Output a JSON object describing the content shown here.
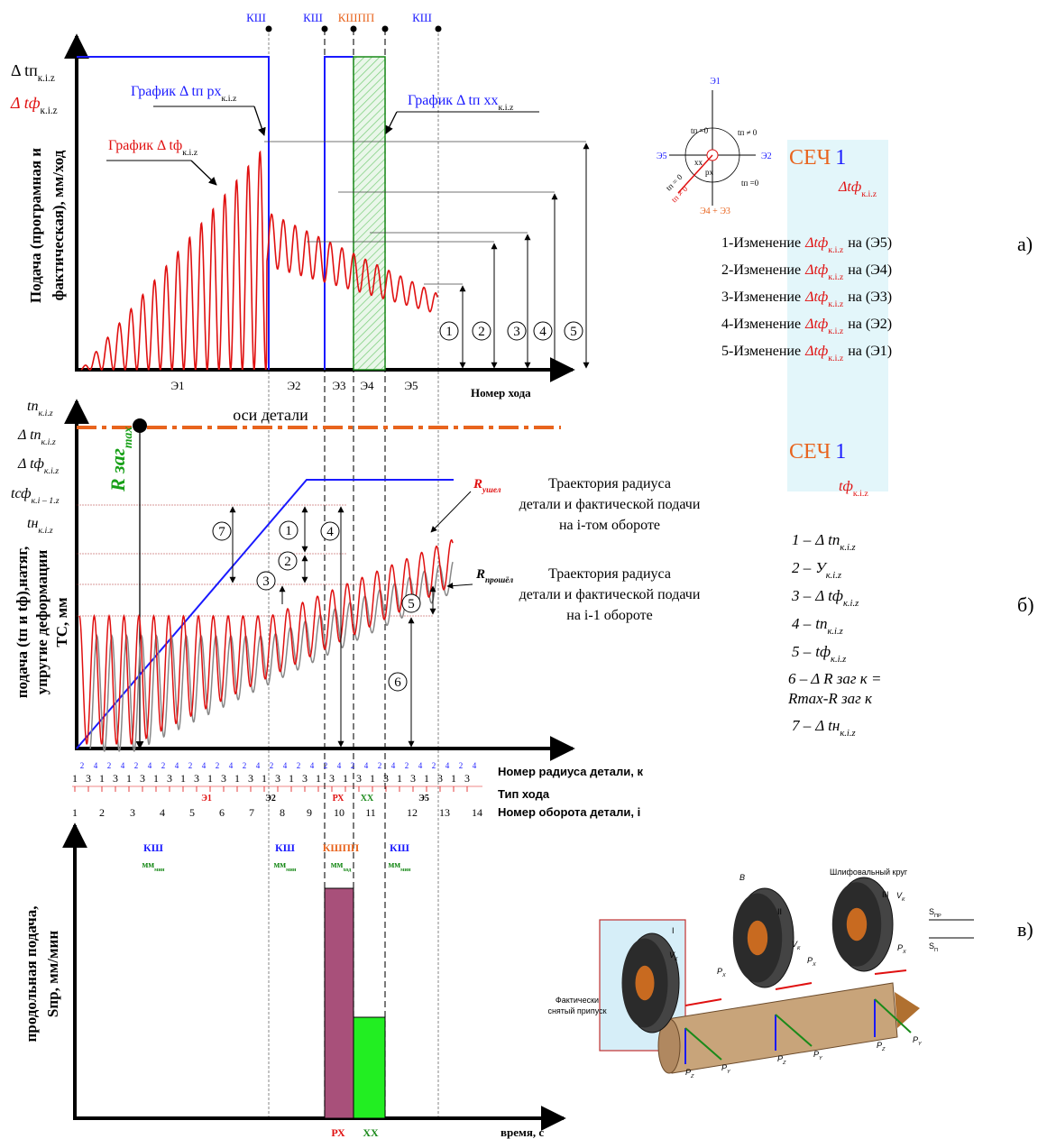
{
  "marks_top": [
    "КШ",
    "КШ",
    "КШПП",
    "КШ"
  ],
  "panel_a": {
    "y_labels": [
      {
        "m": "Δ tп",
        "s": "к.i.z"
      },
      {
        "m": "Δ tф",
        "s": "к.i.z"
      }
    ],
    "y_title": [
      "Подача (програмная и",
      "фактическая), мм/ход"
    ],
    "graph_labels": [
      {
        "m": "График Δ tп рх",
        "s": "к.i.z"
      },
      {
        "m": "График Δ tф",
        "s": "к.i.z"
      },
      {
        "m": "График Δ tп хх",
        "s": "к.i.z"
      }
    ],
    "zones": [
      "Э1",
      "Э2",
      "Э3",
      "Э4",
      "Э5"
    ],
    "x_title": "Номер хода",
    "circles": [
      "1",
      "2",
      "3",
      "4",
      "5"
    ],
    "compass": {
      "e1": "Э1",
      "e2": "Э2",
      "e5": "Э5",
      "e43": "Э4 + Э3",
      "tp0a": "tп =0",
      "tpn0a": "tп ≠ 0",
      "xx": "xx",
      "px": "px",
      "tp0b": "tп =0",
      "tp0c": "tп = 0",
      "tpn0b": "tп ≠ 0"
    },
    "sech": {
      "a": "СЕЧ",
      "n": "1"
    },
    "sech_sub": {
      "m": "Δtф",
      "s": "к.i.z"
    },
    "changes": [
      {
        "a": "1-Изменение",
        "m": "Δtф",
        "s": "к.i.z",
        "b": "на (Э5)"
      },
      {
        "a": "2-Изменение",
        "m": "Δtф",
        "s": "к.i.z",
        "b": "на (Э4)"
      },
      {
        "a": "3-Изменение",
        "m": "Δtф",
        "s": "к.i.z",
        "b": "на (Э3)"
      },
      {
        "a": "4-Изменение",
        "m": "Δtф",
        "s": "к.i.z",
        "b": "на (Э2)"
      },
      {
        "a": "5-Изменение",
        "m": "Δtф",
        "s": "к.i.z",
        "b": "на (Э1)"
      }
    ],
    "letter": "а)"
  },
  "panel_b": {
    "y_labels": [
      {
        "m": "tп",
        "s": "к.i.z"
      },
      {
        "m": "Δ tп",
        "s": "к.i.z"
      },
      {
        "m": "Δ tф",
        "s": "к.i.z"
      },
      {
        "m": "tсф",
        "s": "к.i – 1.z"
      },
      {
        "m": "tн",
        "s": "к.i.z"
      }
    ],
    "y_title": [
      "подача (tп и tф),натяг,",
      "упругие деформации",
      "ТС, мм"
    ],
    "rmax": {
      "m": "R заг",
      "s": "max"
    },
    "axis_line": "оси детали",
    "r_ushel": {
      "m": "R",
      "s": "ушел"
    },
    "traj1": [
      "Траектория радиуса",
      "детали и фактической подачи",
      "на i-том обороте"
    ],
    "r_proshel": {
      "m": "R",
      "s": "прошёл"
    },
    "traj2": [
      "Траектория радиуса",
      "детали и фактической подачи",
      "на i-1 обороте"
    ],
    "circles": [
      "7",
      "1",
      "4",
      "2",
      "3",
      "5",
      "6"
    ],
    "legend": [
      {
        "n": "1 –",
        "m": "Δ tп",
        "s": "к.i.z"
      },
      {
        "n": "2 –",
        "m": "У",
        "s": "к.i.z"
      },
      {
        "n": "3 –",
        "m": "Δ tф",
        "s": "к.i.z"
      },
      {
        "n": "4 –",
        "m": "tп",
        "s": "к.i.z"
      },
      {
        "n": "5 –",
        "m": "tф",
        "s": "к.i.z"
      }
    ],
    "legend6": [
      "6 – Δ R заг к =",
      "Rmax-R заг к"
    ],
    "legend7": {
      "n": "7 –",
      "m": "Δ tн",
      "s": "к.i.z"
    },
    "sech": {
      "a": "СЕЧ",
      "n": "1"
    },
    "sech_sub": {
      "m": "tф",
      "s": "к.i.z"
    },
    "radius_top": [
      "2",
      "4",
      "2",
      "4",
      "2",
      "4",
      "2",
      "4",
      "2",
      "4",
      "2",
      "4",
      "2",
      "4",
      "2",
      "4",
      "2",
      "4",
      "2",
      "4",
      "2",
      "4",
      "2",
      "4",
      "2",
      "4",
      "2",
      "4",
      "2",
      "4"
    ],
    "radius_bottom": [
      "1",
      "3",
      "1",
      "3",
      "1",
      "3",
      "1",
      "3",
      "1",
      "3",
      "1",
      "3",
      "1",
      "3",
      "1",
      "3",
      "1",
      "3",
      "1",
      "3",
      "1",
      "3",
      "1",
      "3",
      "1",
      "3",
      "1",
      "3",
      "1",
      "3"
    ],
    "row_titles": [
      "Номер радиуса детали, к",
      "Тип хода",
      "Номер оборота детали, i"
    ],
    "pass_types": [
      "Э1",
      "Э2",
      "РХ",
      "ХХ",
      "Э5"
    ],
    "revolutions": [
      "1",
      "2",
      "3",
      "4",
      "5",
      "6",
      "7",
      "8",
      "9",
      "10",
      "11",
      "12",
      "13",
      "14"
    ],
    "letter": "б)"
  },
  "panel_c": {
    "modes": [
      {
        "m": "КШ"
      },
      {
        "m": "КШ"
      },
      {
        "m": "КШПП"
      },
      {
        "m": "КШ"
      }
    ],
    "units": [
      {
        "u": "мм",
        "s": "мин"
      },
      {
        "u": "мм",
        "s": "мин"
      },
      {
        "u": "мм",
        "s": "ход"
      },
      {
        "u": "мм",
        "s": "мин"
      }
    ],
    "y_title": [
      "продольная подача,",
      "Sпр, мм/мин"
    ],
    "bar_labels": [
      "РХ",
      "ХХ"
    ],
    "x_title": "время, с",
    "letter": "в)"
  },
  "illustration": {
    "wheel": "Шлифовальный круг",
    "b": "B",
    "n1": "I",
    "n2": "II",
    "n3": "III",
    "removed": [
      "Фактически",
      "снятый припуск"
    ],
    "spr": {
      "m": "S",
      "s": "ПР"
    },
    "sp": {
      "m": "S",
      "s": "П"
    },
    "vk": {
      "m": "V",
      "s": "К"
    },
    "px": {
      "m": "P",
      "s": "X"
    },
    "pz": {
      "m": "P",
      "s": "Z"
    },
    "py": {
      "m": "P",
      "s": "Y"
    }
  }
}
